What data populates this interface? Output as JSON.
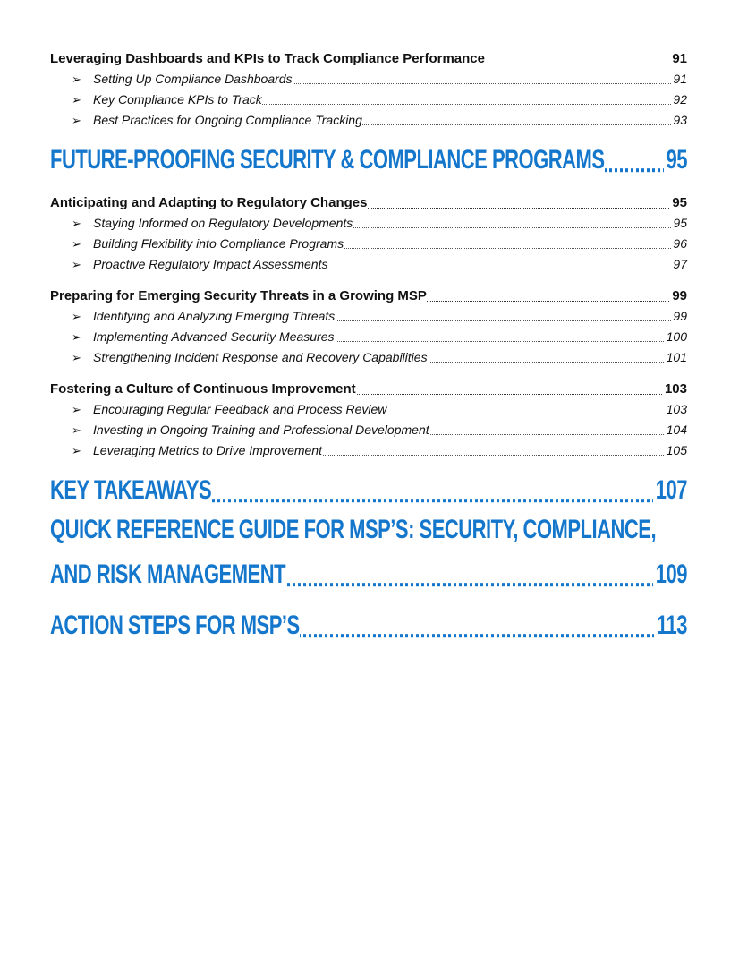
{
  "toc": [
    {
      "subsections": [
        {
          "title": "Leveraging Dashboards and KPIs to Track Compliance Performance",
          "page": 91,
          "items": [
            {
              "title": "Setting Up Compliance Dashboards",
              "page": 91
            },
            {
              "title": "Key Compliance KPIs to Track",
              "page": 92
            },
            {
              "title": "Best Practices for Ongoing Compliance Tracking",
              "page": 93
            }
          ]
        }
      ]
    },
    {
      "chapter": "FUTURE-PROOFING SECURITY & COMPLIANCE PROGRAMS",
      "page": 95,
      "subsections": [
        {
          "title": "Anticipating and Adapting to Regulatory Changes",
          "page": 95,
          "items": [
            {
              "title": "Staying Informed on Regulatory Developments",
              "page": 95
            },
            {
              "title": "Building Flexibility into Compliance Programs",
              "page": 96
            },
            {
              "title": "Proactive Regulatory Impact Assessments",
              "page": 97
            }
          ]
        },
        {
          "title": "Preparing for Emerging Security Threats in a Growing MSP",
          "page": 99,
          "items": [
            {
              "title": "Identifying and Analyzing Emerging Threats",
              "page": 99
            },
            {
              "title": "Implementing Advanced Security Measures",
              "page": 100
            },
            {
              "title": "Strengthening Incident Response and Recovery Capabilities",
              "page": 101
            }
          ]
        },
        {
          "title": "Fostering a Culture of Continuous Improvement",
          "page": 103,
          "items": [
            {
              "title": "Encouraging Regular Feedback and Process Review",
              "page": 103
            },
            {
              "title": "Investing in Ongoing Training and Professional Development",
              "page": 104
            },
            {
              "title": "Leveraging Metrics to Drive Improvement",
              "page": 105
            }
          ]
        }
      ]
    },
    {
      "chapter": "KEY TAKEAWAYS",
      "page": 107
    },
    {
      "chapter": "QUICK REFERENCE GUIDE FOR MSP’S: SECURITY, COMPLIANCE, AND RISK MANAGEMENT",
      "page": 109
    },
    {
      "chapter": "ACTION STEPS FOR MSP’S",
      "page": 113
    }
  ]
}
